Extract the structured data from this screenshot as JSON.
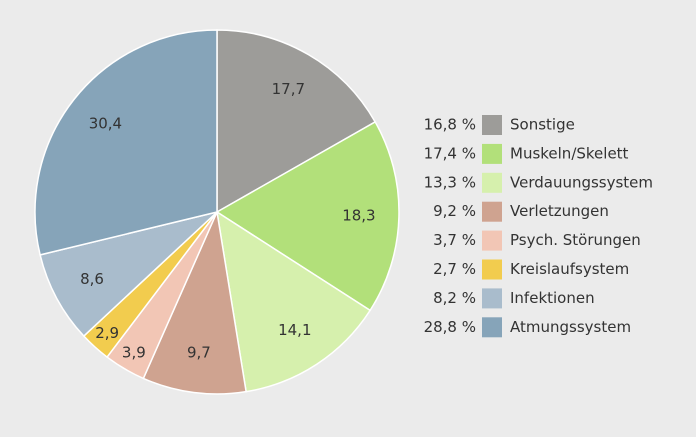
{
  "chart_data": {
    "type": "pie",
    "categories": [
      "Sonstige",
      "Muskeln/Skelett",
      "Verdauungssystem",
      "Verletzungen",
      "Psych. Störungen",
      "Kreislaufsystem",
      "Infektionen",
      "Atmungssystem"
    ],
    "values": [
      17.7,
      18.3,
      14.1,
      9.7,
      3.9,
      2.9,
      8.6,
      30.4
    ],
    "value_labels": [
      "17,7",
      "18,3",
      "14,1",
      "9,7",
      "3,9",
      "2,9",
      "8,6",
      "30,4"
    ],
    "legend_values": [
      16.8,
      17.4,
      13.3,
      9.2,
      3.7,
      2.7,
      8.2,
      28.8
    ],
    "legend_value_labels": [
      "16,8 %",
      "17,4 %",
      "13,3 %",
      "9,2 %",
      "3,7 %",
      "2,7 %",
      "8,2 %",
      "28,8 %"
    ],
    "colors": [
      "#9d9c99",
      "#b2e07a",
      "#d6f0ad",
      "#cfa390",
      "#f2c6b5",
      "#f2cc4e",
      "#a9bccc",
      "#86a4b9"
    ]
  }
}
